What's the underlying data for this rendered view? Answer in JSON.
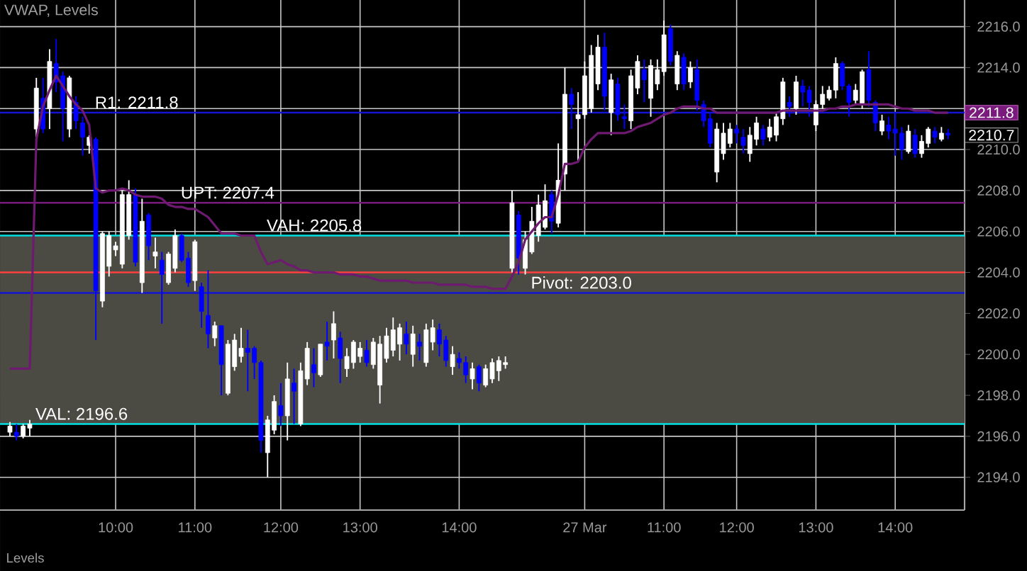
{
  "chart_data": {
    "type": "candlestick",
    "title": "VWAP, Levels",
    "categories": [
      null,
      null,
      null,
      null,
      null,
      null,
      null,
      null,
      null,
      null,
      null,
      null,
      null,
      null,
      null,
      null,
      "10:00",
      null,
      null,
      null,
      null,
      null,
      null,
      null,
      null,
      null,
      null,
      null,
      "11:00",
      null,
      null,
      null,
      null,
      null,
      null,
      null,
      null,
      null,
      null,
      null,
      null,
      "12:00",
      null,
      null,
      null,
      null,
      null,
      null,
      null,
      null,
      null,
      null,
      null,
      "13:00",
      null,
      null,
      null,
      null,
      null,
      null,
      null,
      null,
      null,
      null,
      null,
      null,
      null,
      null,
      "14:00",
      null,
      null,
      null,
      null,
      null,
      null,
      null,
      null,
      null,
      null,
      null,
      null,
      null,
      null,
      null,
      null,
      null,
      null,
      "27 Mar",
      null,
      null,
      null,
      null,
      null,
      null,
      null,
      null,
      null,
      null,
      null,
      "11:00",
      null,
      null,
      null,
      null,
      null,
      null,
      null,
      null,
      null,
      null,
      "12:00",
      null,
      null,
      null,
      null,
      null,
      null,
      null,
      null,
      null,
      null,
      null,
      "13:00",
      null,
      null,
      null,
      null,
      null,
      null,
      null,
      null,
      null,
      null,
      null,
      "14:00",
      null,
      null,
      null,
      null,
      null,
      null,
      null,
      null
    ],
    "series": [
      {
        "ohlc": [
          [
            2196.2,
            2196.7,
            2196.0,
            2196.5
          ],
          [
            2196.2,
            2196.6,
            2195.8,
            2196.0
          ],
          [
            2196.0,
            2196.6,
            2195.9,
            2196.5
          ],
          [
            2196.4,
            2196.8,
            2196.0,
            2196.6
          ],
          [
            2211.0,
            2213.5,
            2210.6,
            2213.0
          ],
          [
            2212.5,
            2213.5,
            2210.8,
            2211.0
          ],
          [
            2212.0,
            2214.9,
            2211.0,
            2214.3
          ],
          [
            2214.2,
            2215.4,
            2212.8,
            2213.3
          ],
          [
            2213.6,
            2213.8,
            2210.4,
            2212.0
          ],
          [
            2211.0,
            2213.6,
            2210.6,
            2213.5
          ],
          [
            2212.3,
            2212.6,
            2211.0,
            2211.4
          ],
          [
            2211.3,
            2211.6,
            2209.7,
            2210.6
          ],
          [
            2210.2,
            2210.7,
            2209.8,
            2210.6
          ],
          [
            2210.5,
            2210.6,
            2200.7,
            2203.1
          ],
          [
            2202.6,
            2206.0,
            2202.3,
            2205.9
          ],
          [
            2204.3,
            2206.0,
            2203.8,
            2205.8
          ],
          [
            2205.1,
            2205.5,
            2204.8,
            2205.3
          ],
          [
            2204.4,
            2208.0,
            2204.2,
            2207.8
          ],
          [
            2205.8,
            2208.5,
            2205.6,
            2207.8
          ],
          [
            2207.8,
            2208.1,
            2204.3,
            2204.5
          ],
          [
            2203.5,
            2207.6,
            2203.0,
            2206.5
          ],
          [
            2206.8,
            2206.9,
            2204.6,
            2205.3
          ],
          [
            2204.8,
            2205.7,
            2204.2,
            2205.0
          ],
          [
            2204.6,
            2205.0,
            2201.5,
            2203.9
          ],
          [
            2203.5,
            2205.0,
            2203.4,
            2204.9
          ],
          [
            2204.2,
            2206.1,
            2204.0,
            2205.8
          ],
          [
            2205.8,
            2205.9,
            2204.5,
            2204.6
          ],
          [
            2204.7,
            2205.0,
            2203.3,
            2203.5
          ],
          [
            2203.6,
            2205.6,
            2203.1,
            2205.5
          ],
          [
            2203.3,
            2203.5,
            2201.3,
            2202.1
          ],
          [
            2201.9,
            2204.1,
            2200.3,
            2201.0
          ],
          [
            2200.8,
            2201.6,
            2200.4,
            2201.4
          ],
          [
            2201.4,
            2201.4,
            2198.0,
            2199.5
          ],
          [
            2198.1,
            2200.7,
            2198.0,
            2200.5
          ],
          [
            2199.4,
            2201.0,
            2199.2,
            2200.7
          ],
          [
            2199.9,
            2201.3,
            2199.6,
            2200.3
          ],
          [
            2200.3,
            2201.2,
            2198.2,
            2200.1
          ],
          [
            2200.3,
            2200.4,
            2198.8,
            2199.6
          ],
          [
            2199.6,
            2199.7,
            2195.2,
            2195.8
          ],
          [
            2195.2,
            2197.0,
            2194.0,
            2196.8
          ],
          [
            2196.3,
            2198.0,
            2196.1,
            2197.7
          ],
          [
            2197.5,
            2198.6,
            2196.5,
            2197.0
          ],
          [
            2197.0,
            2199.6,
            2195.8,
            2198.8
          ],
          [
            2198.6,
            2199.3,
            2196.6,
            2198.2
          ],
          [
            2196.6,
            2199.6,
            2196.5,
            2199.2
          ],
          [
            2198.8,
            2200.6,
            2198.5,
            2200.3
          ],
          [
            2199.5,
            2200.3,
            2198.4,
            2199.1
          ],
          [
            2199.0,
            2200.5,
            2198.9,
            2200.5
          ],
          [
            2200.6,
            2201.6,
            2199.7,
            2200.4
          ],
          [
            2200.7,
            2202.1,
            2199.8,
            2201.5
          ],
          [
            2200.8,
            2201.1,
            2198.6,
            2199.8
          ],
          [
            2199.3,
            2200.3,
            2198.9,
            2199.9
          ],
          [
            2199.6,
            2200.7,
            2199.3,
            2200.6
          ],
          [
            2199.9,
            2200.6,
            2199.6,
            2200.3
          ],
          [
            2200.2,
            2200.7,
            2199.4,
            2199.6
          ],
          [
            2199.5,
            2200.8,
            2199.3,
            2200.6
          ],
          [
            2198.5,
            2200.9,
            2197.6,
            2200.5
          ],
          [
            2199.8,
            2201.3,
            2199.6,
            2200.9
          ],
          [
            2200.2,
            2201.8,
            2199.9,
            2201.2
          ],
          [
            2200.5,
            2201.5,
            2199.7,
            2201.3
          ],
          [
            2201.0,
            2201.6,
            2200.0,
            2200.5
          ],
          [
            2200.0,
            2201.4,
            2199.4,
            2201.0
          ],
          [
            2200.6,
            2201.0,
            2199.7,
            2200.4
          ],
          [
            2199.6,
            2201.5,
            2199.4,
            2201.2
          ],
          [
            2200.6,
            2201.7,
            2200.2,
            2201.3
          ],
          [
            2201.2,
            2201.5,
            2199.9,
            2200.5
          ],
          [
            2200.7,
            2200.9,
            2199.4,
            2199.7
          ],
          [
            2199.4,
            2200.4,
            2199.0,
            2200.0
          ],
          [
            2199.8,
            2200.1,
            2199.3,
            2199.6
          ],
          [
            2199.6,
            2199.9,
            2198.6,
            2199.0
          ],
          [
            2198.8,
            2199.6,
            2198.3,
            2199.3
          ],
          [
            2199.4,
            2199.5,
            2198.2,
            2198.6
          ],
          [
            2198.5,
            2199.5,
            2198.4,
            2199.3
          ],
          [
            2198.8,
            2199.8,
            2198.6,
            2199.6
          ],
          [
            2199.2,
            2199.9,
            2198.7,
            2199.7
          ],
          [
            2199.5,
            2199.9,
            2199.3,
            2199.6
          ],
          [
            2204.2,
            2208.0,
            2204.0,
            2207.4
          ],
          [
            2206.8,
            2207.0,
            2203.9,
            2204.7
          ],
          [
            2204.2,
            2206.0,
            2203.9,
            2205.6
          ],
          [
            2205.0,
            2207.2,
            2204.9,
            2206.5
          ],
          [
            2205.8,
            2207.8,
            2205.5,
            2207.3
          ],
          [
            2206.2,
            2208.3,
            2206.1,
            2207.5
          ],
          [
            2207.8,
            2208.0,
            2205.9,
            2206.5
          ],
          [
            2206.4,
            2210.3,
            2206.2,
            2208.5
          ],
          [
            2208.8,
            2214.0,
            2208.0,
            2212.7
          ],
          [
            2212.7,
            2213.0,
            2211.0,
            2212.2
          ],
          [
            2211.5,
            2212.8,
            2209.4,
            2211.7
          ],
          [
            2211.7,
            2214.3,
            2211.5,
            2213.6
          ],
          [
            2212.0,
            2215.1,
            2211.8,
            2214.6
          ],
          [
            2213.2,
            2215.6,
            2212.9,
            2215.0
          ],
          [
            2215.0,
            2215.7,
            2211.9,
            2212.6
          ],
          [
            2211.8,
            2213.7,
            2210.7,
            2213.4
          ],
          [
            2213.2,
            2213.5,
            2211.4,
            2211.7
          ],
          [
            2211.6,
            2212.2,
            2211.0,
            2211.5
          ],
          [
            2211.4,
            2213.9,
            2211.0,
            2213.6
          ],
          [
            2213.0,
            2214.6,
            2212.7,
            2214.3
          ],
          [
            2213.9,
            2214.4,
            2212.3,
            2213.4
          ],
          [
            2212.5,
            2214.4,
            2211.6,
            2214.1
          ],
          [
            2213.2,
            2214.4,
            2212.9,
            2213.9
          ],
          [
            2213.8,
            2216.3,
            2213.6,
            2215.6
          ],
          [
            2215.9,
            2216.1,
            2214.1,
            2214.3
          ],
          [
            2213.2,
            2214.8,
            2212.9,
            2214.6
          ],
          [
            2214.5,
            2214.7,
            2212.9,
            2213.2
          ],
          [
            2213.3,
            2214.3,
            2213.0,
            2214.0
          ],
          [
            2213.9,
            2214.4,
            2211.9,
            2212.4
          ],
          [
            2212.2,
            2212.4,
            2211.1,
            2211.4
          ],
          [
            2211.5,
            2211.8,
            2210.1,
            2210.3
          ],
          [
            2208.9,
            2211.3,
            2208.4,
            2211.0
          ],
          [
            2209.8,
            2211.3,
            2209.5,
            2210.8
          ],
          [
            2210.3,
            2211.3,
            2210.1,
            2211.0
          ],
          [
            2211.0,
            2211.2,
            2210.3,
            2210.8
          ],
          [
            2210.6,
            2211.0,
            2209.8,
            2210.2
          ],
          [
            2209.8,
            2211.1,
            2209.4,
            2210.7
          ],
          [
            2210.5,
            2211.6,
            2210.2,
            2211.3
          ],
          [
            2211.0,
            2211.2,
            2210.2,
            2210.5
          ],
          [
            2210.6,
            2211.5,
            2210.4,
            2211.1
          ],
          [
            2210.7,
            2211.8,
            2210.4,
            2211.6
          ],
          [
            2211.5,
            2213.5,
            2211.2,
            2213.3
          ],
          [
            2212.3,
            2212.6,
            2211.6,
            2212.1
          ],
          [
            2212.0,
            2213.6,
            2211.7,
            2213.3
          ],
          [
            2213.1,
            2213.4,
            2212.1,
            2212.8
          ],
          [
            2212.9,
            2213.1,
            2211.6,
            2212.3
          ],
          [
            2211.2,
            2212.4,
            2210.9,
            2212.2
          ],
          [
            2212.2,
            2213.1,
            2212.0,
            2212.7
          ],
          [
            2212.5,
            2213.1,
            2212.4,
            2212.9
          ],
          [
            2212.9,
            2214.5,
            2212.5,
            2214.2
          ],
          [
            2214.2,
            2214.3,
            2212.9,
            2213.1
          ],
          [
            2213.1,
            2213.2,
            2211.6,
            2212.3
          ],
          [
            2212.4,
            2213.2,
            2212.2,
            2212.9
          ],
          [
            2212.2,
            2213.9,
            2212.0,
            2213.8
          ],
          [
            2213.9,
            2214.8,
            2212.1,
            2212.4
          ],
          [
            2212.3,
            2212.4,
            2210.9,
            2211.3
          ],
          [
            2210.9,
            2211.7,
            2210.7,
            2211.4
          ],
          [
            2211.2,
            2211.6,
            2210.5,
            2210.9
          ],
          [
            2211.0,
            2211.8,
            2209.7,
            2210.8
          ],
          [
            2210.8,
            2211.1,
            2209.5,
            2210.0
          ],
          [
            2209.9,
            2211.2,
            2209.8,
            2210.9
          ],
          [
            2210.7,
            2211.0,
            2209.6,
            2209.8
          ],
          [
            2209.8,
            2210.7,
            2209.6,
            2210.4
          ],
          [
            2210.3,
            2211.1,
            2210.1,
            2211.0
          ],
          [
            2210.9,
            2211.1,
            2210.3,
            2210.6
          ],
          [
            2210.5,
            2211.1,
            2210.4,
            2210.8
          ],
          [
            2210.8,
            2211.0,
            2210.5,
            2210.7
          ]
        ],
        "colors": [
          "#ffffff",
          "#0000ff",
          "#ffffff",
          "#ffffff",
          "#ffffff",
          "#0000ff",
          "#ffffff",
          "#0000ff",
          "#0000ff",
          "#ffffff",
          "#0000ff",
          "#0000ff",
          "#ffffff",
          "#0000ff",
          "#ffffff",
          "#ffffff",
          "#ffffff",
          "#ffffff",
          "#ffffff",
          "#0000ff",
          "#ffffff",
          "#0000ff",
          "#ffffff",
          "#0000ff",
          "#ffffff",
          "#ffffff",
          "#0000ff",
          "#0000ff",
          "#ffffff",
          "#0000ff",
          "#0000ff",
          "#ffffff",
          "#0000ff",
          "#ffffff",
          "#ffffff",
          "#ffffff",
          "#0000ff",
          "#0000ff",
          "#0000ff",
          "#ffffff",
          "#ffffff",
          "#0000ff",
          "#ffffff",
          "#0000ff",
          "#ffffff",
          "#ffffff",
          "#0000ff",
          "#ffffff",
          "#0000ff",
          "#ffffff",
          "#0000ff",
          "#ffffff",
          "#ffffff",
          "#ffffff",
          "#0000ff",
          "#ffffff",
          "#ffffff",
          "#ffffff",
          "#ffffff",
          "#ffffff",
          "#0000ff",
          "#ffffff",
          "#0000ff",
          "#ffffff",
          "#ffffff",
          "#0000ff",
          "#0000ff",
          "#ffffff",
          "#0000ff",
          "#0000ff",
          "#ffffff",
          "#0000ff",
          "#ffffff",
          "#ffffff",
          "#ffffff",
          "#ffffff",
          "#ffffff",
          "#0000ff",
          "#ffffff",
          "#ffffff",
          "#ffffff",
          "#ffffff",
          "#0000ff",
          "#ffffff",
          "#ffffff",
          "#0000ff",
          "#ffffff",
          "#ffffff",
          "#ffffff",
          "#ffffff",
          "#0000ff",
          "#ffffff",
          "#0000ff",
          "#0000ff",
          "#ffffff",
          "#ffffff",
          "#0000ff",
          "#ffffff",
          "#ffffff",
          "#ffffff",
          "#0000ff",
          "#ffffff",
          "#0000ff",
          "#ffffff",
          "#0000ff",
          "#0000ff",
          "#0000ff",
          "#ffffff",
          "#ffffff",
          "#ffffff",
          "#0000ff",
          "#0000ff",
          "#ffffff",
          "#ffffff",
          "#0000ff",
          "#ffffff",
          "#ffffff",
          "#ffffff",
          "#0000ff",
          "#ffffff",
          "#0000ff",
          "#0000ff",
          "#ffffff",
          "#ffffff",
          "#ffffff",
          "#ffffff",
          "#0000ff",
          "#0000ff",
          "#ffffff",
          "#ffffff",
          "#0000ff",
          "#0000ff",
          "#ffffff",
          "#0000ff",
          "#0000ff",
          "#0000ff",
          "#ffffff",
          "#0000ff",
          "#ffffff",
          "#ffffff",
          "#0000ff",
          "#ffffff",
          "#0000ff"
        ]
      },
      {
        "type": "line",
        "color": "#6e1a70",
        "values": [
          2199.3,
          2199.3,
          2199.3,
          2199.3,
          2210.5,
          2212.1,
          2212.9,
          2213.6,
          2213.1,
          2212.6,
          2212.2,
          2211.9,
          2211.2,
          2208.1,
          2207.9,
          2208.0,
          2208.0,
          2208.1,
          2208.0,
          2207.8,
          2207.7,
          2207.7,
          2207.7,
          2207.6,
          2207.3,
          2207.2,
          2207.2,
          2207.1,
          2207.1,
          2206.9,
          2206.7,
          2206.3,
          2205.9,
          2205.9,
          2205.9,
          2205.8,
          2205.8,
          2205.8,
          2205.0,
          2204.4,
          2204.5,
          2204.6,
          2204.4,
          2204.3,
          2204.1,
          2204.1,
          2204.0,
          2204.0,
          2204.0,
          2204.0,
          2203.9,
          2203.9,
          2203.9,
          2203.8,
          2203.8,
          2203.7,
          2203.6,
          2203.6,
          2203.6,
          2203.6,
          2203.6,
          2203.5,
          2203.5,
          2203.5,
          2203.5,
          2203.4,
          2203.4,
          2203.4,
          2203.4,
          2203.4,
          2203.3,
          2203.3,
          2203.3,
          2203.2,
          2203.2,
          2203.2,
          2203.8,
          2204.5,
          2205.6,
          2206.0,
          2206.4,
          2206.7,
          2206.7,
          2207.8,
          2209.3,
          2209.3,
          2209.4,
          2210.1,
          2210.5,
          2210.8,
          2210.8,
          2210.8,
          2210.8,
          2210.8,
          2210.9,
          2211.1,
          2211.2,
          2211.3,
          2211.5,
          2211.7,
          2211.8,
          2212.0,
          2212.1,
          2212.1,
          2212.1,
          2212.0,
          2212.0,
          2211.8,
          2211.8,
          2211.8,
          2211.8,
          2211.8,
          2211.8,
          2211.8,
          2211.8,
          2211.8,
          2211.8,
          2211.9,
          2211.9,
          2211.9,
          2211.9,
          2211.9,
          2211.9,
          2211.9,
          2212.0,
          2212.0,
          2212.1,
          2212.1,
          2212.2,
          2212.2,
          2212.2,
          2212.2,
          2212.2,
          2212.2,
          2212.1,
          2212.0,
          2212.0,
          2211.9,
          2211.9,
          2211.9,
          2211.8,
          2211.8,
          2211.8
        ]
      }
    ],
    "ylim": [
      2192.4,
      2217.3
    ],
    "yticks": [
      {
        "value": 2194,
        "label": "2194.0"
      },
      {
        "value": 2196,
        "label": "2196.0"
      },
      {
        "value": 2198,
        "label": "2198.0"
      },
      {
        "value": 2200,
        "label": "2200.0"
      },
      {
        "value": 2202,
        "label": "2202.0"
      },
      {
        "value": 2204,
        "label": "2204.0"
      },
      {
        "value": 2206,
        "label": "2206.0"
      },
      {
        "value": 2208,
        "label": "2208.0"
      },
      {
        "value": 2210,
        "label": "2210.0"
      },
      {
        "value": 2212,
        "label": null
      },
      {
        "value": 2214,
        "label": "2214.0"
      },
      {
        "value": 2216,
        "label": "2216.0"
      }
    ],
    "grid": true,
    "bands": [
      {
        "axis": "y",
        "from": 2196.6,
        "to": 2205.8,
        "color": "#4b4a43"
      }
    ],
    "ref_lines": [
      {
        "axis": "y",
        "value": 2211.8,
        "label": "R1: 2211.8",
        "color": "#1414d2"
      },
      {
        "axis": "y",
        "value": 2207.4,
        "label": "UPT: 2207.4",
        "color": "#7a1a7c"
      },
      {
        "axis": "y",
        "value": 2205.8,
        "label": "VAH: 2205.8",
        "color": "#00e0e0"
      },
      {
        "axis": "y",
        "value": 2204.0,
        "color": "#ff4040"
      },
      {
        "axis": "y",
        "value": 2203.0,
        "label": "Pivot: 2203.0",
        "color": "#1414d2"
      },
      {
        "axis": "y",
        "value": 2196.6,
        "label": "VAL: 2196.6",
        "color": "#00e0e0"
      }
    ],
    "annotations": [
      "2211.8",
      "2210.7",
      "Levels"
    ]
  }
}
